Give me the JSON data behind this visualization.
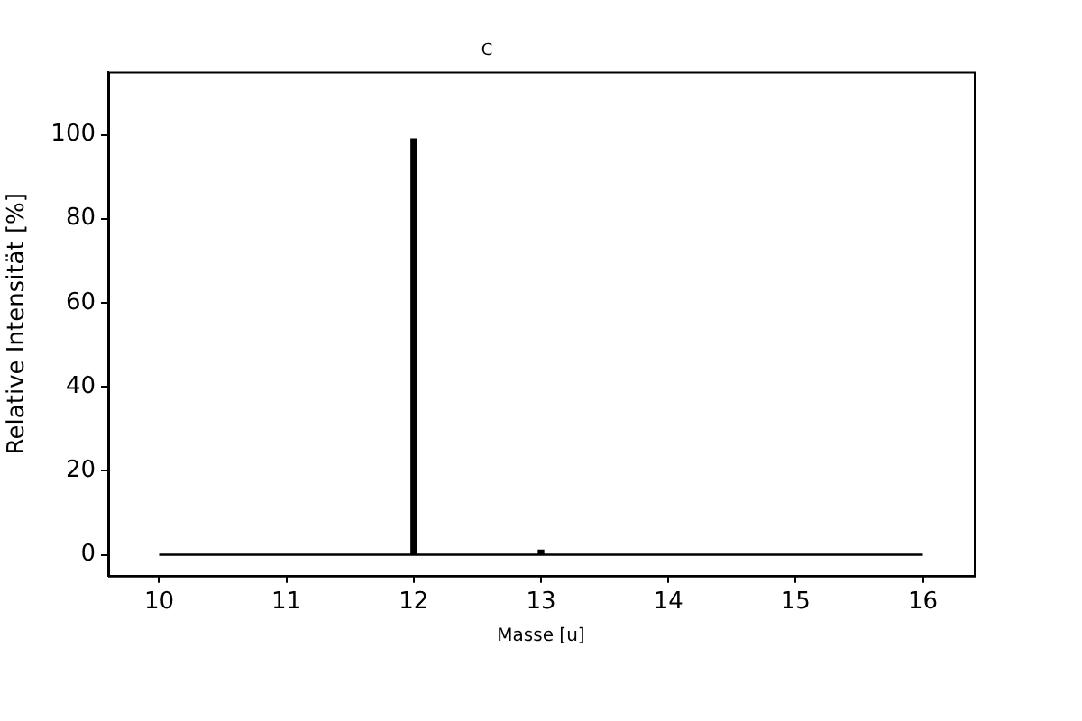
{
  "chart_data": {
    "type": "bar",
    "title": "C",
    "xlabel": "Masse [u]",
    "ylabel": "Relative Intensität [%]",
    "series": [
      {
        "x": [
          12,
          13
        ],
        "values": [
          99,
          1.1
        ],
        "color": "#000000"
      },
      {
        "type": "line",
        "x": [
          10,
          16
        ],
        "values": [
          0,
          0
        ],
        "color": "#000000"
      }
    ],
    "xlim": [
      9.6,
      16.4
    ],
    "xticks": [
      10,
      11,
      12,
      13,
      14,
      15,
      16
    ],
    "ylim": [
      -5,
      115
    ],
    "yticks": [
      0,
      20,
      40,
      60,
      80,
      100
    ],
    "grid": false,
    "legend": false,
    "marker": "none"
  }
}
